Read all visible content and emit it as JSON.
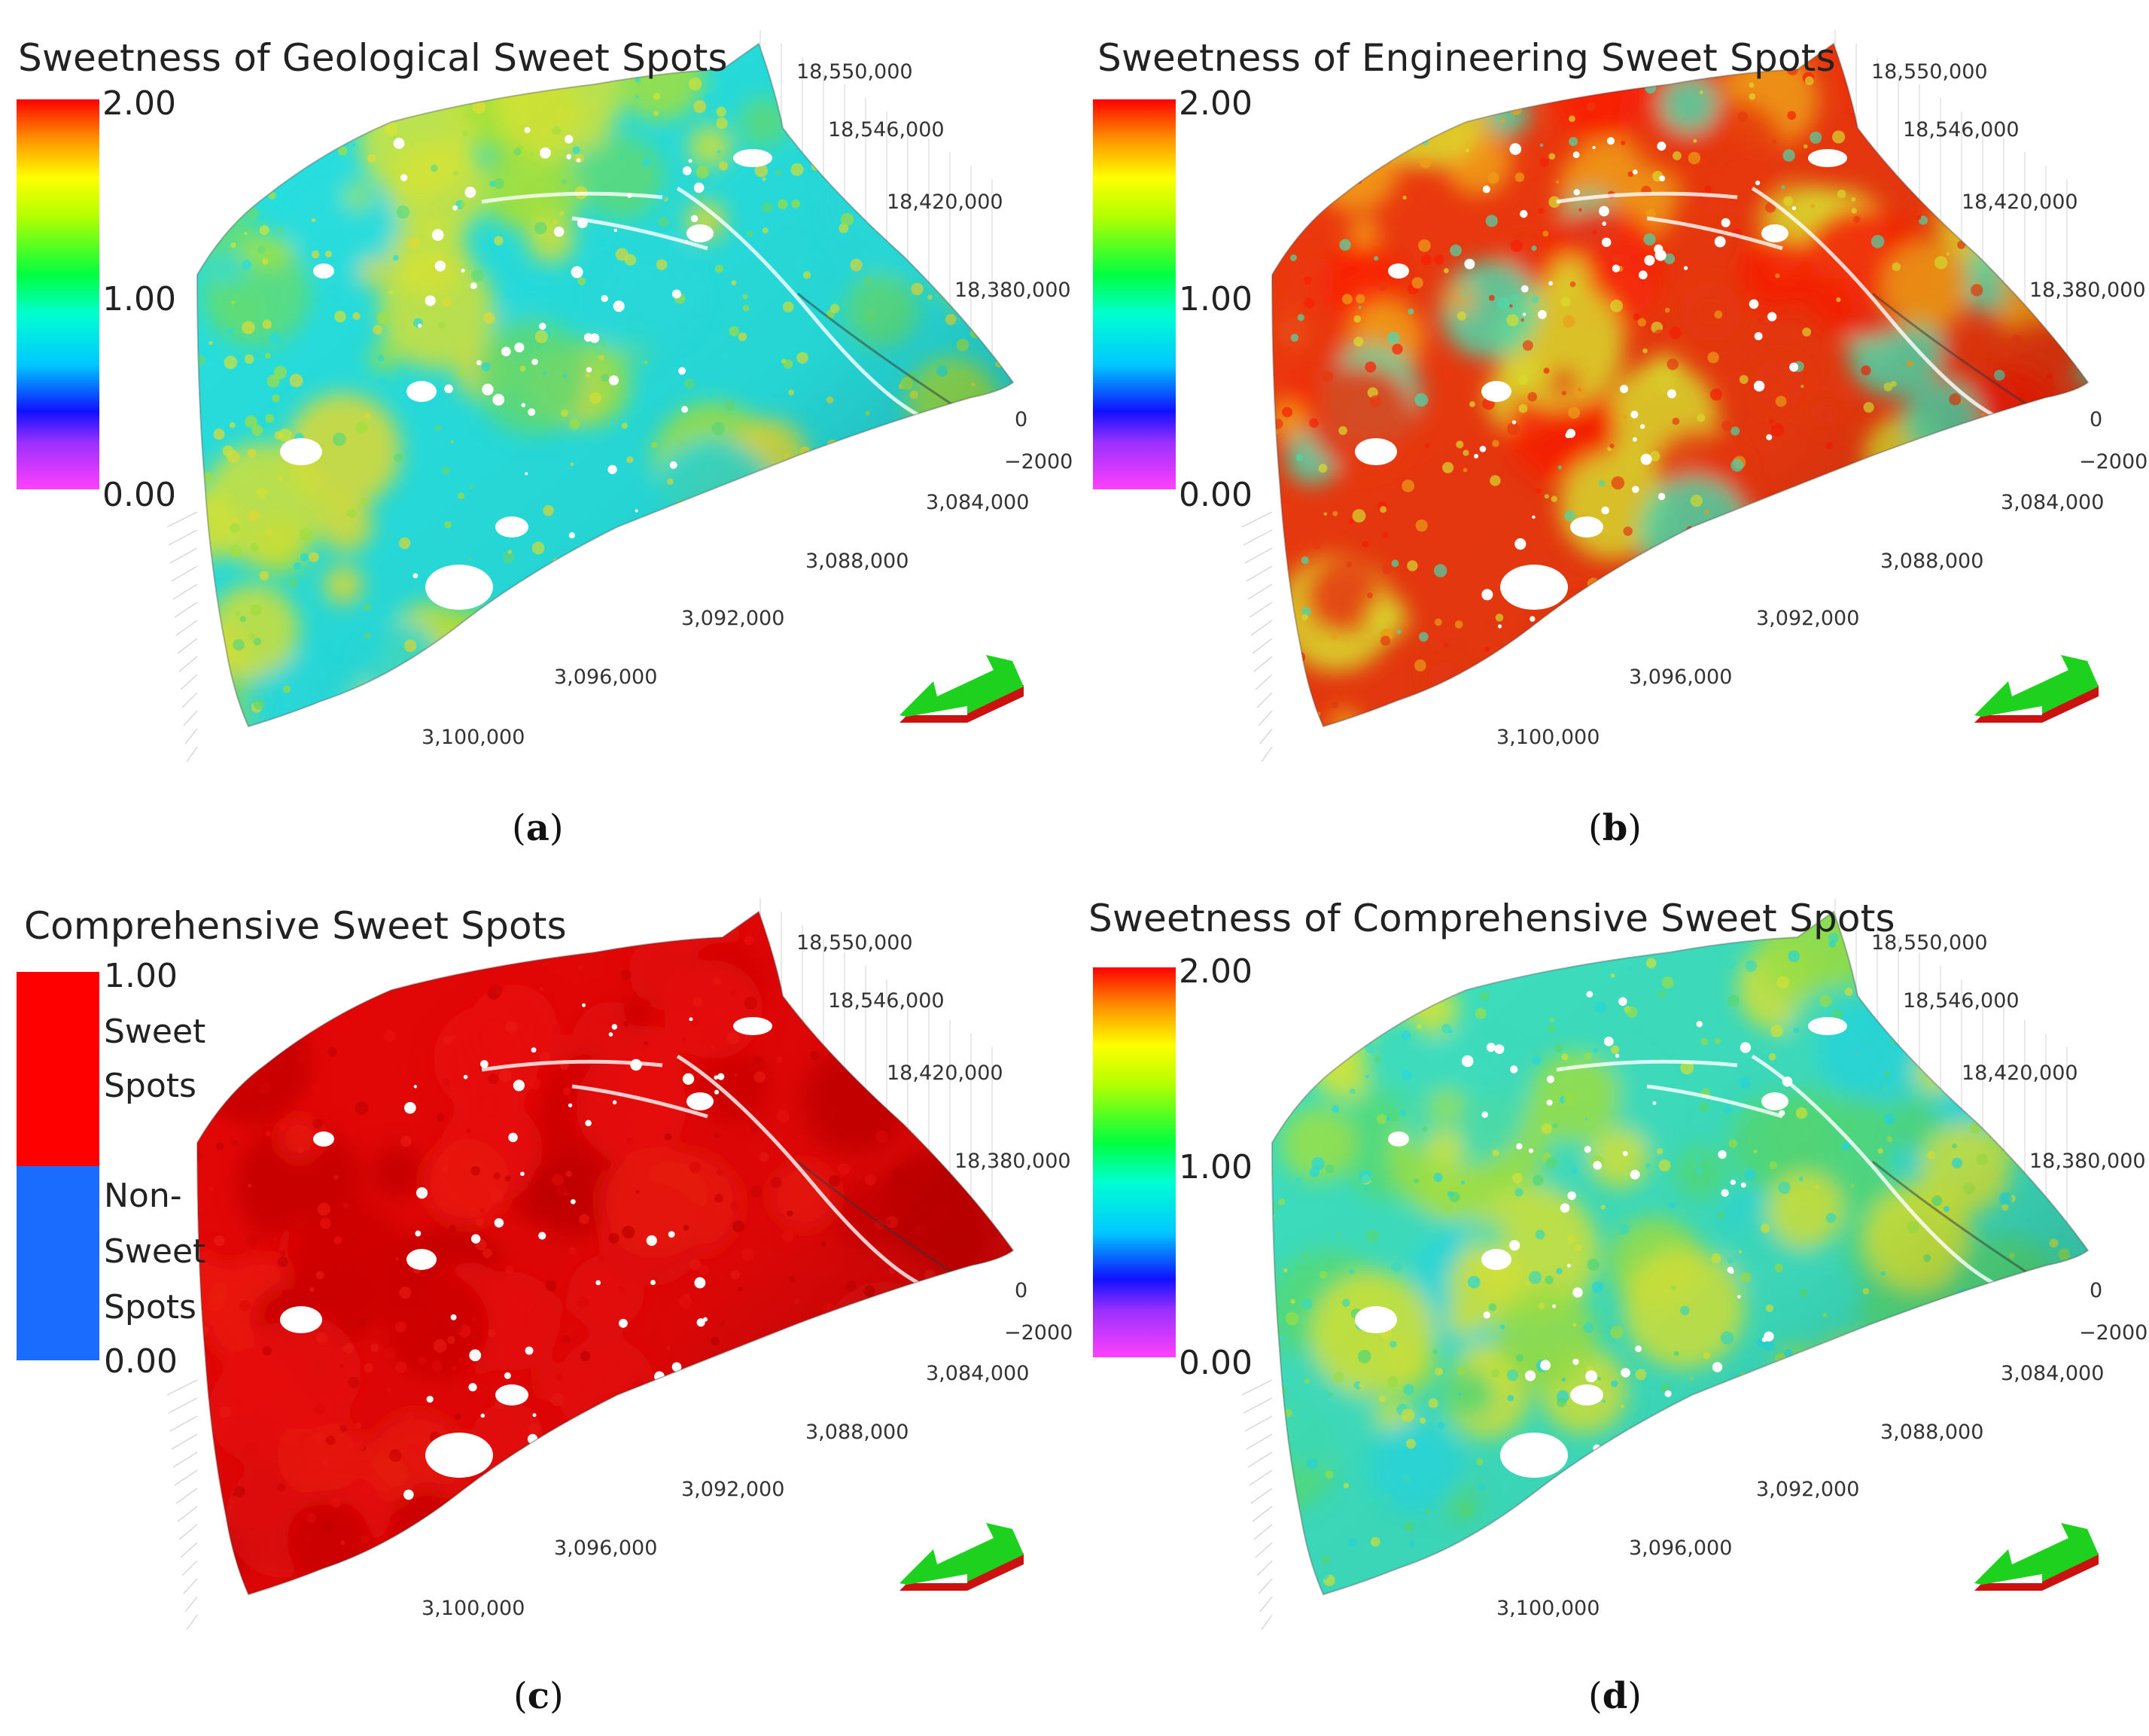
{
  "axes": {
    "y_ticks": [
      "18,550,000",
      "18,546,000",
      "18,420,000",
      "18,380,000"
    ],
    "z_ticks": [
      "0",
      "−2000"
    ],
    "x_ticks": [
      "3,084,000",
      "3,088,000",
      "3,092,000",
      "3,096,000",
      "3,100,000"
    ]
  },
  "colorscale": {
    "rainbow": [
      "#ff40ff",
      "#9a30ff",
      "#1010ff",
      "#00e6ff",
      "#00ff66",
      "#b4ff00",
      "#ffff00",
      "#ff9000",
      "#ff0000"
    ],
    "binary_sweet": "#ff0000",
    "binary_non_sweet": "#1a6cff"
  },
  "panels": [
    {
      "id": "a",
      "caption_letter": "a",
      "title": "Sweetness of Geological Sweet Spots",
      "legend": {
        "top": "2.00",
        "mid": "1.00",
        "bottom": "0.00"
      },
      "palette": [
        "#28e1e0",
        "#a6e640",
        "#d8e838",
        "#62e07a",
        "#e8e034"
      ]
    },
    {
      "id": "b",
      "caption_letter": "b",
      "title": "Sweetness of Engineering Sweet Spots",
      "legend": {
        "top": "2.00",
        "mid": "1.00",
        "bottom": "0.00"
      },
      "palette": [
        "#ee3a10",
        "#f4a31a",
        "#e0e230",
        "#4fe0b0",
        "#ff1e06"
      ]
    },
    {
      "id": "c",
      "caption_letter": "c",
      "title": "Comprehensive Sweet Spots",
      "legend": {
        "top": "1.00",
        "bottom": "0.00",
        "sweet_line1": "Sweet",
        "sweet_line2": "Spots",
        "non_line1": "Non-",
        "non_line2": "Sweet",
        "non_line3": "Spots"
      },
      "palette": [
        "#e60808",
        "#d40404",
        "#ee1010",
        "#c80202",
        "#f01a12"
      ]
    },
    {
      "id": "d",
      "caption_letter": "d",
      "title": "Sweetness of Comprehensive Sweet Spots",
      "legend": {
        "top": "2.00",
        "mid": "1.00",
        "bottom": "0.00"
      },
      "palette": [
        "#3ee0c0",
        "#9ee448",
        "#d8e83a",
        "#56de7a",
        "#28dce0"
      ]
    }
  ]
}
